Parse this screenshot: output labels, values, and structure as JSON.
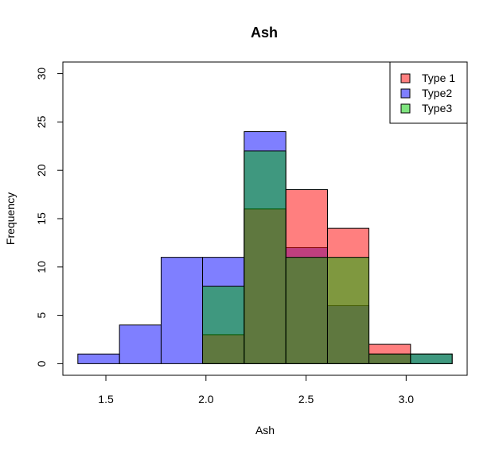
{
  "chart_data": {
    "type": "bar",
    "subtype": "overlapping-histogram",
    "title": "Ash",
    "xlabel": "Ash",
    "ylabel": "Frequency",
    "xlim": [
      1.36,
      3.23
    ],
    "ylim": [
      0,
      30
    ],
    "xticks": [
      "1.5",
      "2.0",
      "2.5",
      "3.0"
    ],
    "yticks": [
      "0",
      "5",
      "10",
      "15",
      "20",
      "25",
      "30"
    ],
    "bin_edges": [
      1.36,
      1.568,
      1.776,
      1.983,
      2.191,
      2.399,
      2.607,
      2.814,
      3.022,
      3.23
    ],
    "series": [
      {
        "name": "Type2",
        "color": "#0000FF",
        "opacity": 0.5,
        "values": [
          1,
          4,
          11,
          11,
          24,
          12,
          6,
          1,
          1
        ]
      },
      {
        "name": "Type 1",
        "color": "#FF0000",
        "opacity": 0.5,
        "values": [
          0,
          0,
          0,
          3,
          16,
          18,
          14,
          2,
          0
        ]
      },
      {
        "name": "Type3",
        "color": "#00B200",
        "opacity": 0.5,
        "values": [
          0,
          0,
          0,
          8,
          22,
          11,
          11,
          1,
          1
        ]
      }
    ],
    "legend": {
      "position": "top-right",
      "entries": [
        {
          "label": "Type 1",
          "color": "#FF7F7F"
        },
        {
          "label": "Type2",
          "color": "#7F7FFF"
        },
        {
          "label": "Type3",
          "color": "#7FE57F"
        }
      ]
    },
    "grid": false
  }
}
